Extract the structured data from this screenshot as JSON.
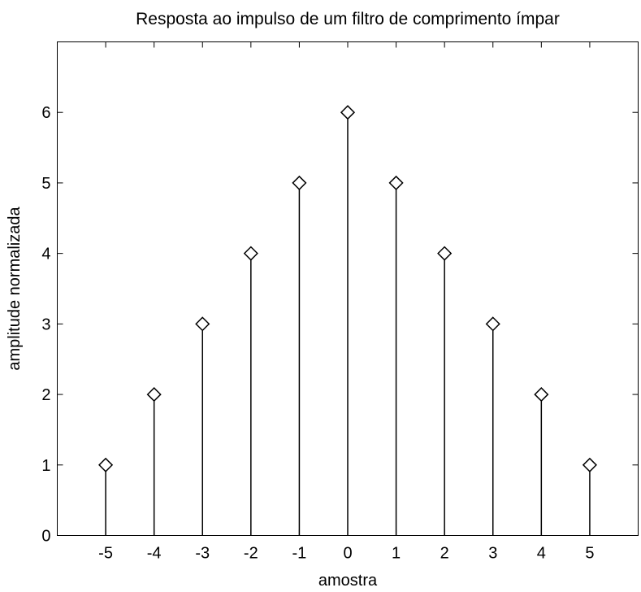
{
  "chart_data": {
    "type": "stem",
    "title": "Resposta ao impulso de um filtro de comprimento ímpar",
    "xlabel": "amostra",
    "ylabel": "amplitude normalizada",
    "x": [
      -5,
      -4,
      -3,
      -2,
      -1,
      0,
      1,
      2,
      3,
      4,
      5
    ],
    "y": [
      1,
      2,
      3,
      4,
      5,
      6,
      5,
      4,
      3,
      2,
      1
    ],
    "xlim": [
      -6,
      6
    ],
    "ylim": [
      0,
      7
    ],
    "xticks": [
      -5,
      -4,
      -3,
      -2,
      -1,
      0,
      1,
      2,
      3,
      4,
      5
    ],
    "xtick_labels": [
      "-5",
      "-4",
      "-3",
      "-2",
      "-1",
      "0",
      "1",
      "2",
      "3",
      "4",
      "5"
    ],
    "yticks": [
      0,
      1,
      2,
      3,
      4,
      5,
      6
    ],
    "ytick_labels": [
      "0",
      "1",
      "2",
      "3",
      "4",
      "5",
      "6"
    ],
    "marker": "diamond",
    "grid": false,
    "colors": {
      "stem": "#000000",
      "marker_edge": "#000000",
      "marker_fill": "#ffffff",
      "axes": "#000000",
      "background": "#ffffff"
    }
  }
}
